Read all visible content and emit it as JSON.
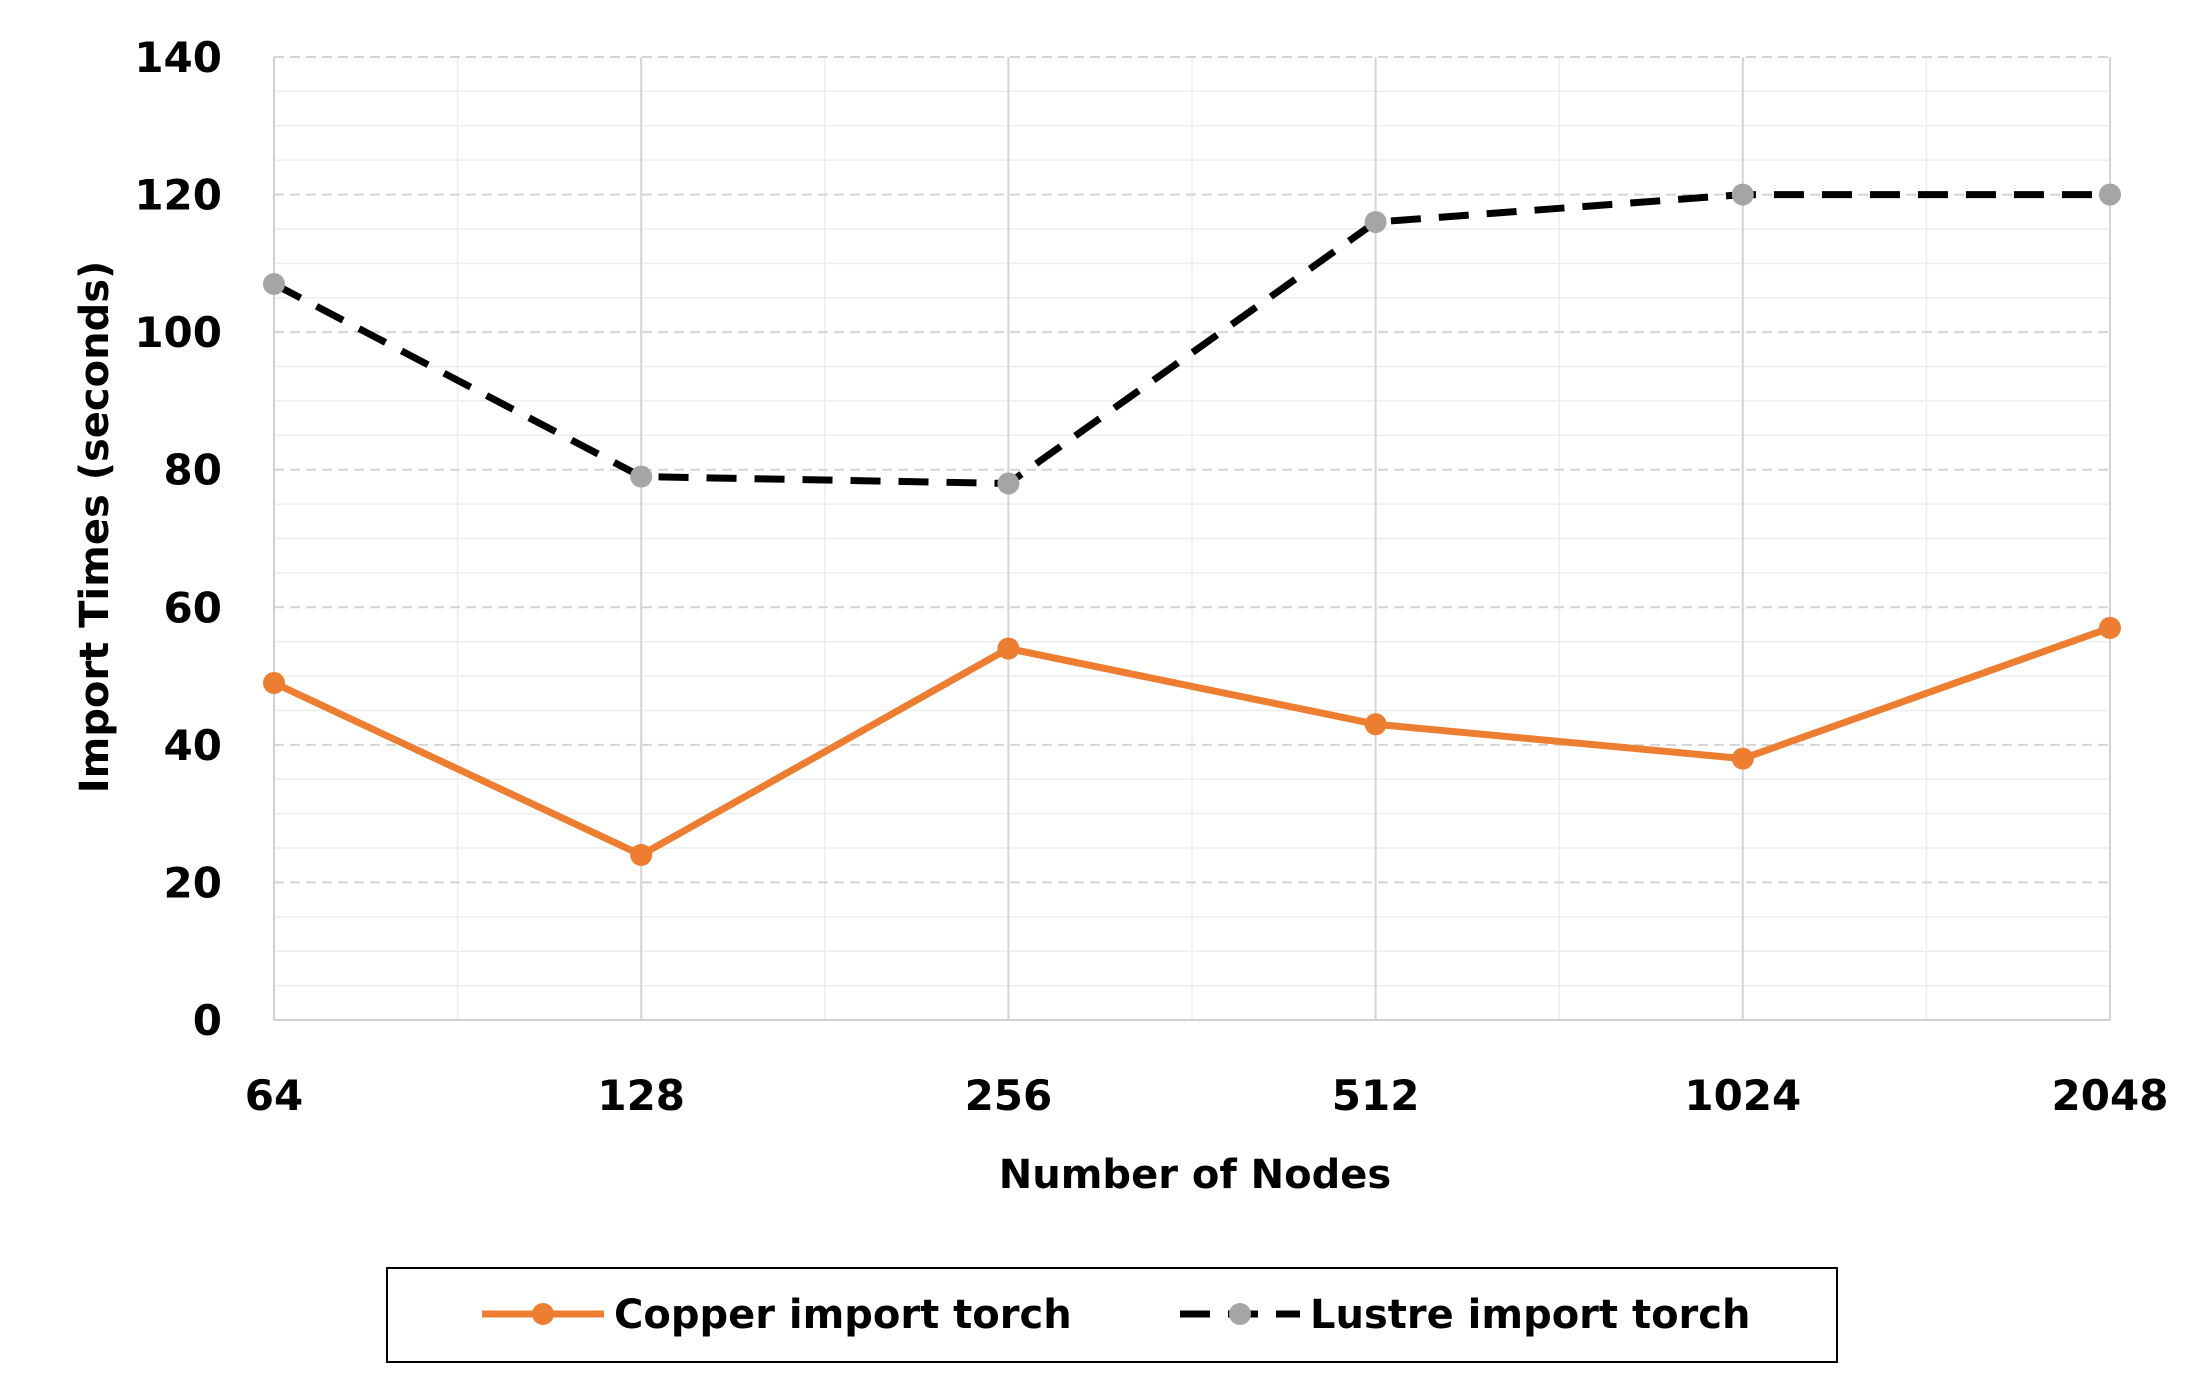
{
  "chart_data": {
    "type": "line",
    "categories": [
      "64",
      "128",
      "256",
      "512",
      "1024",
      "2048"
    ],
    "xlabel": "Number of Nodes",
    "ylabel": "Import Times (seconds)",
    "ylim": [
      0,
      140
    ],
    "yticks": [
      0,
      20,
      40,
      60,
      80,
      100,
      120,
      140
    ],
    "grid": true,
    "legend_position": "bottom",
    "series": [
      {
        "name": "Copper import torch",
        "values": [
          49,
          24,
          54,
          43,
          38,
          57
        ],
        "color": "#ED7D31",
        "marker_color": "#ED7D31",
        "line_style": "solid"
      },
      {
        "name": "Lustre import torch",
        "values": [
          107,
          79,
          78,
          116,
          120,
          120
        ],
        "color": "#000000",
        "marker_color": "#A5A5A5",
        "line_style": "dashed"
      }
    ]
  }
}
